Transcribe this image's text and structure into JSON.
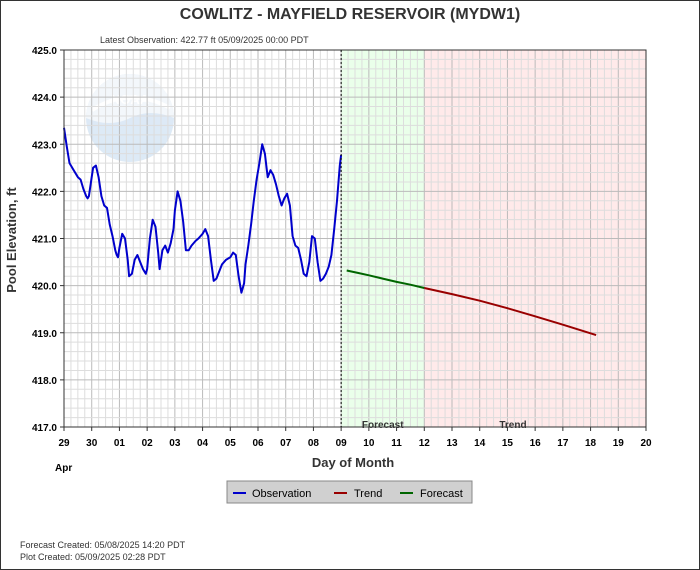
{
  "chart_data": {
    "type": "line",
    "title": "COWLITZ - MAYFIELD RESERVOIR  (MYDW1)",
    "latest_observation": "Latest Observation:  422.77 ft 05/09/2025 00:00 PDT",
    "ylabel": "Pool Elevation, ft",
    "xlabel": "Day of Month",
    "month_label": "Apr",
    "ylim": [
      417.0,
      425.0
    ],
    "y_ticks": [
      "417.0",
      "418.0",
      "419.0",
      "420.0",
      "421.0",
      "422.0",
      "423.0",
      "424.0",
      "425.0"
    ],
    "x_range_days": [
      0,
      21
    ],
    "x_ticks": [
      "29",
      "30",
      "01",
      "02",
      "03",
      "04",
      "05",
      "06",
      "07",
      "08",
      "09",
      "10",
      "11",
      "12",
      "13",
      "14",
      "15",
      "16",
      "17",
      "18",
      "19",
      "20"
    ],
    "forecast_region": {
      "label": "Forecast",
      "start_day": 10.0,
      "end_day": 13.0,
      "color": "#eaffea"
    },
    "trend_region": {
      "label": "Trend",
      "start_day": 13.0,
      "end_day": 21.0,
      "color": "#ffeaea"
    },
    "grid": true,
    "legend_position": "bottom",
    "series": [
      {
        "name": "Observation",
        "color": "#0000cc",
        "points": [
          [
            0.0,
            423.35
          ],
          [
            0.1,
            422.95
          ],
          [
            0.2,
            422.6
          ],
          [
            0.35,
            422.45
          ],
          [
            0.5,
            422.3
          ],
          [
            0.6,
            422.25
          ],
          [
            0.7,
            422.05
          ],
          [
            0.8,
            421.9
          ],
          [
            0.85,
            421.85
          ],
          [
            0.9,
            421.9
          ],
          [
            1.0,
            422.3
          ],
          [
            1.05,
            422.5
          ],
          [
            1.15,
            422.55
          ],
          [
            1.25,
            422.3
          ],
          [
            1.35,
            421.9
          ],
          [
            1.45,
            421.7
          ],
          [
            1.55,
            421.65
          ],
          [
            1.65,
            421.3
          ],
          [
            1.75,
            421.05
          ],
          [
            1.85,
            420.75
          ],
          [
            1.9,
            420.65
          ],
          [
            1.95,
            420.6
          ],
          [
            2.0,
            420.8
          ],
          [
            2.1,
            421.1
          ],
          [
            2.2,
            421.0
          ],
          [
            2.3,
            420.55
          ],
          [
            2.35,
            420.2
          ],
          [
            2.45,
            420.25
          ],
          [
            2.55,
            420.55
          ],
          [
            2.65,
            420.65
          ],
          [
            2.75,
            420.5
          ],
          [
            2.85,
            420.35
          ],
          [
            2.95,
            420.25
          ],
          [
            3.0,
            420.35
          ],
          [
            3.1,
            421.0
          ],
          [
            3.2,
            421.4
          ],
          [
            3.3,
            421.25
          ],
          [
            3.4,
            420.7
          ],
          [
            3.45,
            420.35
          ],
          [
            3.55,
            420.75
          ],
          [
            3.65,
            420.85
          ],
          [
            3.75,
            420.7
          ],
          [
            3.85,
            420.9
          ],
          [
            3.95,
            421.2
          ],
          [
            4.0,
            421.6
          ],
          [
            4.1,
            422.0
          ],
          [
            4.2,
            421.8
          ],
          [
            4.3,
            421.35
          ],
          [
            4.4,
            420.75
          ],
          [
            4.5,
            420.75
          ],
          [
            4.6,
            420.85
          ],
          [
            4.75,
            420.95
          ],
          [
            4.85,
            421.0
          ],
          [
            5.0,
            421.1
          ],
          [
            5.1,
            421.2
          ],
          [
            5.2,
            421.05
          ],
          [
            5.3,
            420.55
          ],
          [
            5.4,
            420.1
          ],
          [
            5.5,
            420.15
          ],
          [
            5.6,
            420.3
          ],
          [
            5.7,
            420.45
          ],
          [
            5.85,
            420.55
          ],
          [
            6.0,
            420.6
          ],
          [
            6.1,
            420.7
          ],
          [
            6.2,
            420.65
          ],
          [
            6.3,
            420.2
          ],
          [
            6.4,
            419.85
          ],
          [
            6.5,
            420.05
          ],
          [
            6.55,
            420.45
          ],
          [
            6.65,
            420.85
          ],
          [
            6.75,
            421.3
          ],
          [
            6.85,
            421.8
          ],
          [
            6.95,
            422.25
          ],
          [
            7.05,
            422.6
          ],
          [
            7.15,
            423.0
          ],
          [
            7.25,
            422.8
          ],
          [
            7.35,
            422.3
          ],
          [
            7.45,
            422.45
          ],
          [
            7.55,
            422.35
          ],
          [
            7.65,
            422.15
          ],
          [
            7.75,
            421.9
          ],
          [
            7.85,
            421.7
          ],
          [
            7.95,
            421.85
          ],
          [
            8.05,
            421.95
          ],
          [
            8.15,
            421.7
          ],
          [
            8.25,
            421.05
          ],
          [
            8.35,
            420.85
          ],
          [
            8.45,
            420.8
          ],
          [
            8.55,
            420.55
          ],
          [
            8.65,
            420.25
          ],
          [
            8.75,
            420.2
          ],
          [
            8.85,
            420.5
          ],
          [
            8.95,
            421.05
          ],
          [
            9.05,
            421.0
          ],
          [
            9.15,
            420.5
          ],
          [
            9.25,
            420.1
          ],
          [
            9.35,
            420.15
          ],
          [
            9.45,
            420.25
          ],
          [
            9.55,
            420.4
          ],
          [
            9.65,
            420.65
          ],
          [
            9.75,
            421.2
          ],
          [
            9.85,
            421.8
          ],
          [
            9.95,
            422.55
          ],
          [
            10.0,
            422.77
          ]
        ]
      },
      {
        "name": "Trend",
        "color": "#990000",
        "points": [
          [
            13.0,
            419.95
          ],
          [
            14.0,
            419.82
          ],
          [
            15.0,
            419.68
          ],
          [
            16.0,
            419.52
          ],
          [
            17.0,
            419.35
          ],
          [
            18.0,
            419.17
          ],
          [
            19.2,
            418.95
          ]
        ]
      },
      {
        "name": "Forecast",
        "color": "#006600",
        "points": [
          [
            10.2,
            420.32
          ],
          [
            10.6,
            420.27
          ],
          [
            11.0,
            420.22
          ],
          [
            11.5,
            420.15
          ],
          [
            12.0,
            420.08
          ],
          [
            12.5,
            420.02
          ],
          [
            13.0,
            419.95
          ]
        ]
      }
    ],
    "legend_order": [
      "Observation",
      "Trend",
      "Forecast"
    ]
  },
  "footer": {
    "forecast_created": "Forecast Created: 05/08/2025 14:20 PDT",
    "plot_created": "Plot Created: 05/09/2025 02:28 PDT"
  },
  "watermark": {
    "label": "NOAA"
  }
}
